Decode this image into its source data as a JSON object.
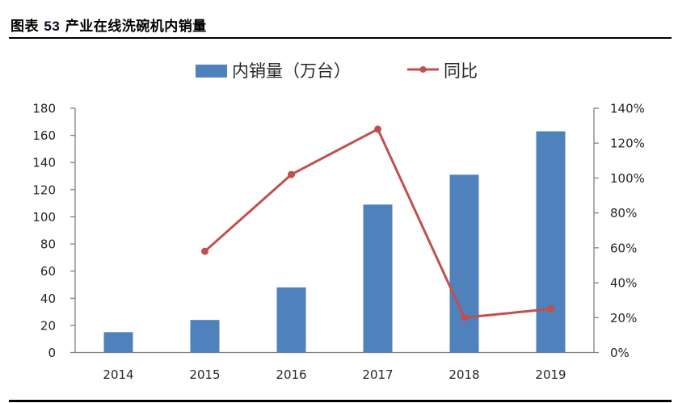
{
  "figure": {
    "label": "图表",
    "number": "53",
    "caption": "产业在线洗碗机内销量"
  },
  "legend": {
    "bar_label": "内销量（万台）",
    "line_label": "同比"
  },
  "colors": {
    "bar": "#4F81BD",
    "line": "#C0504D",
    "axis": "#808080",
    "text": "#262626"
  },
  "axes": {
    "left_ticks": [
      "0",
      "20",
      "40",
      "60",
      "80",
      "100",
      "120",
      "140",
      "160",
      "180"
    ],
    "right_ticks": [
      "0%",
      "20%",
      "40%",
      "60%",
      "80%",
      "100%",
      "120%",
      "140%"
    ],
    "x_ticks": [
      "2014",
      "2015",
      "2016",
      "2017",
      "2018",
      "2019"
    ]
  },
  "chart_data": {
    "type": "bar+line",
    "title": "产业在线洗碗机内销量",
    "categories": [
      "2014",
      "2015",
      "2016",
      "2017",
      "2018",
      "2019"
    ],
    "series": [
      {
        "name": "内销量（万台）",
        "type": "bar",
        "axis": "left",
        "values": [
          15,
          24,
          48,
          109,
          131,
          163
        ]
      },
      {
        "name": "同比",
        "type": "line",
        "axis": "right",
        "unit": "%",
        "values": [
          null,
          58,
          102,
          128,
          20,
          25
        ]
      }
    ],
    "xlabel": "",
    "ylabel_left": "",
    "ylabel_right": "",
    "ylim_left": [
      0,
      180
    ],
    "ylim_right": [
      0,
      140
    ],
    "left_tick_step": 20,
    "right_tick_step": 20,
    "grid": false,
    "legend_position": "top"
  }
}
